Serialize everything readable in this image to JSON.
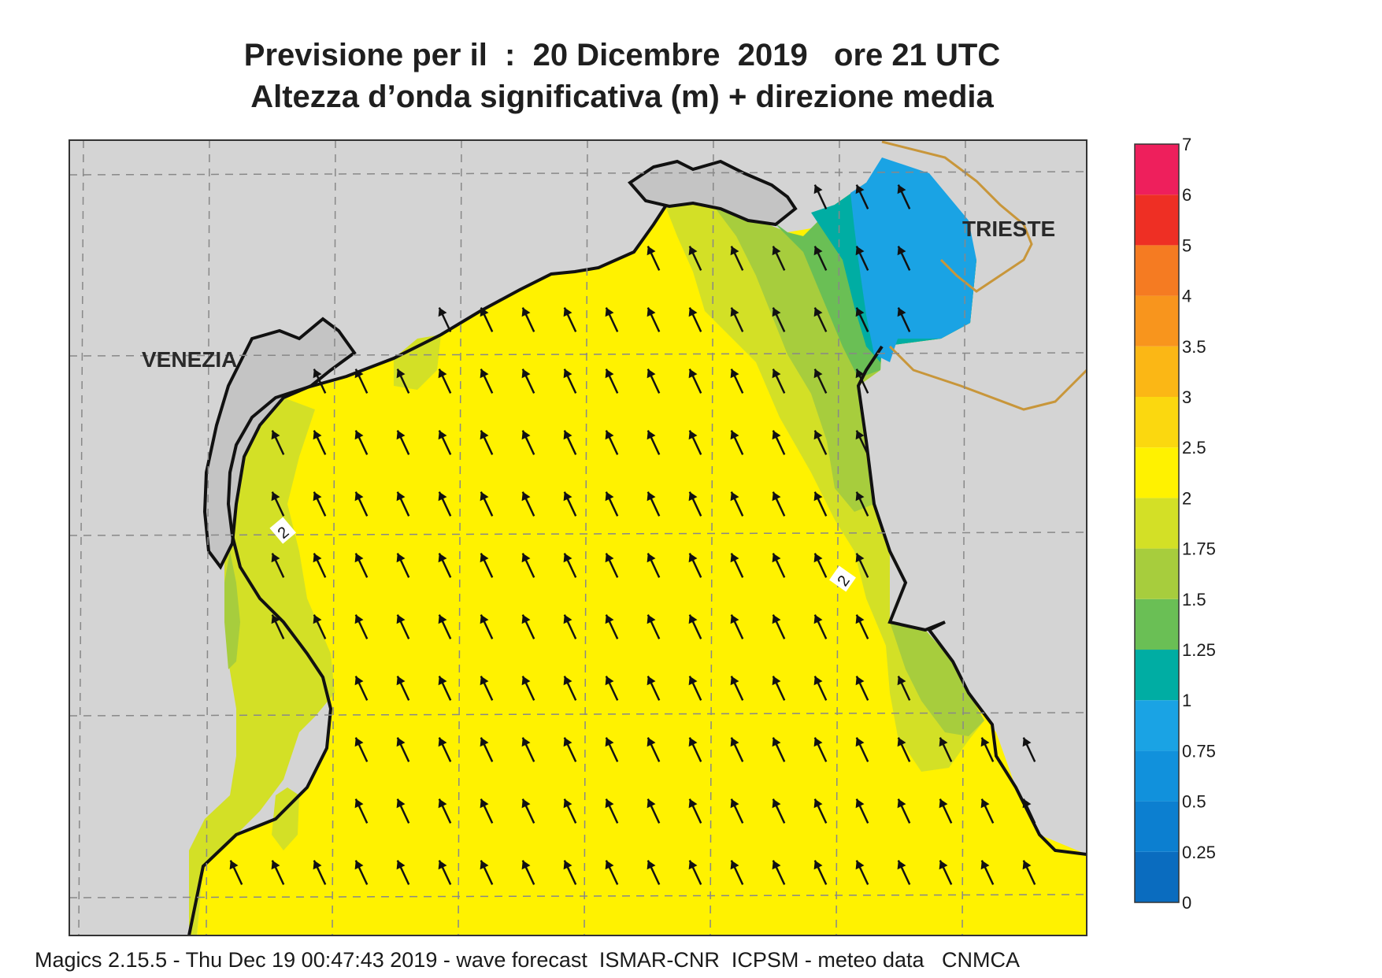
{
  "title": {
    "line1": "Previsione per il  :  20 Dicembre  2019   ore 21 UTC",
    "line2": "Altezza d’onda significativa (m) + direzione media"
  },
  "places": [
    "VENEZIA",
    "TRIESTE"
  ],
  "contour_labels": [
    "2",
    "2"
  ],
  "colorbar": {
    "ticks": [
      "0",
      "0.25",
      "0.5",
      "0.75",
      "1",
      "1.25",
      "1.5",
      "1.75",
      "2",
      "2.5",
      "3",
      "3.5",
      "4",
      "5",
      "6",
      "7"
    ],
    "colors": [
      "#0a6cbf",
      "#0c7fd0",
      "#1191dc",
      "#1aa3e4",
      "#00ada3",
      "#6abf55",
      "#a7cd3d",
      "#d3e026",
      "#fff200",
      "#fbd80f",
      "#fbb715",
      "#f8951d",
      "#f57b22",
      "#ee2f24",
      "#ee1f5c"
    ]
  },
  "wave_direction": "NNW",
  "footer": "Magics 2.15.5 - Thu Dec 19 00:47:43 2019 - wave forecast  ISMAR-CNR  ICPSM - meteo data   CNMCA"
}
